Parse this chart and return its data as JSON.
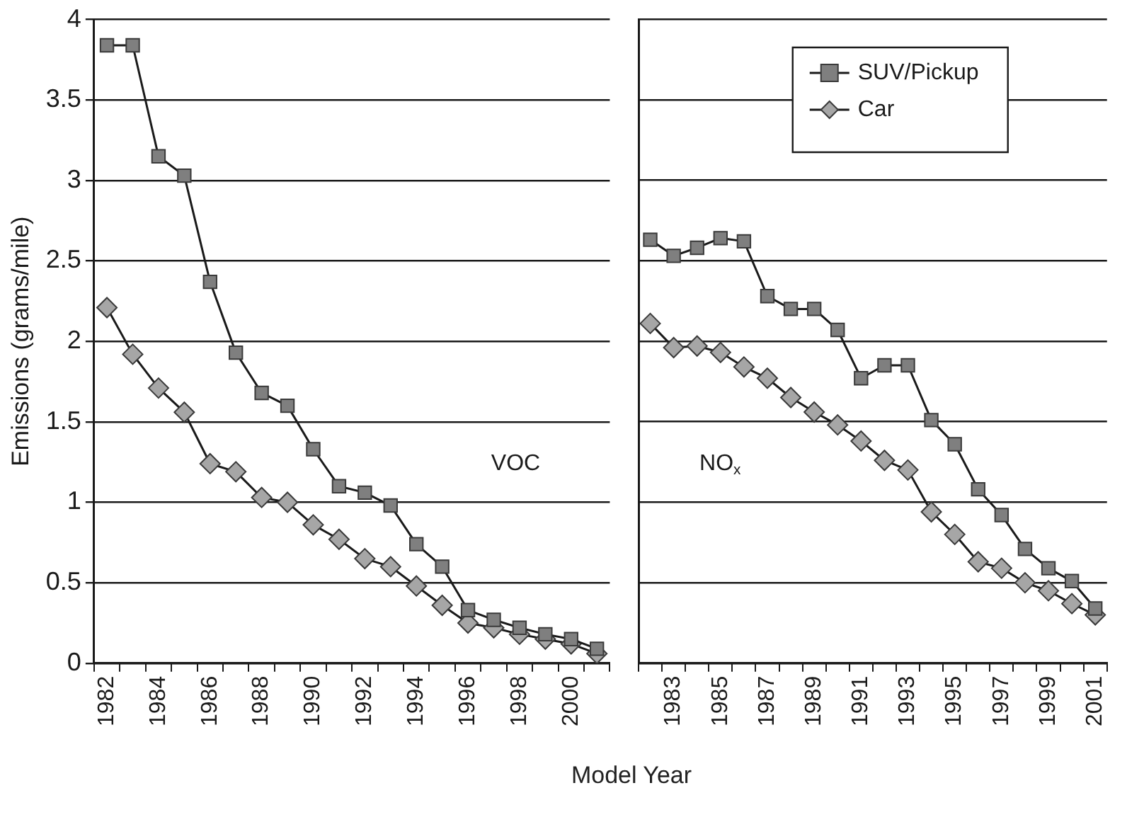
{
  "chart_data": [
    {
      "type": "line",
      "ylabel": "Emissions (grams/mile)",
      "xlabel": "Model Year",
      "categories": [
        "1982",
        null,
        "1984",
        null,
        "1986",
        null,
        "1988",
        null,
        "1990",
        null,
        "1992",
        null,
        "1994",
        null,
        "1996",
        null,
        "1998",
        null,
        "2000",
        null
      ],
      "series": [
        {
          "color": "#7f7f7f",
          "marker": "square",
          "values": [
            3.84,
            3.84,
            3.15,
            3.03,
            2.37,
            1.93,
            1.68,
            1.6,
            1.33,
            1.1,
            1.06,
            0.98,
            0.74,
            0.6,
            0.33,
            0.27,
            0.22,
            0.18,
            0.15,
            0.09
          ]
        },
        {
          "color": "#a6a6a6",
          "marker": "diamond",
          "values": [
            2.21,
            1.92,
            1.71,
            1.56,
            1.24,
            1.19,
            1.03,
            1.0,
            0.86,
            0.77,
            0.65,
            0.6,
            0.48,
            0.36,
            0.25,
            0.22,
            0.18,
            0.15,
            0.12,
            0.06
          ]
        }
      ],
      "ylim": [
        0,
        4
      ],
      "yticks": [
        0,
        0.5,
        1,
        1.5,
        2,
        2.5,
        3,
        3.5,
        4
      ],
      "grid": "y",
      "line_style": "solid",
      "annotations": [
        "VOC"
      ]
    },
    {
      "type": "line",
      "categories": [
        null,
        "1983",
        null,
        "1985",
        null,
        "1987",
        null,
        "1989",
        null,
        "1991",
        null,
        "1993",
        null,
        "1995",
        null,
        "1997",
        null,
        "1999",
        null,
        "2001"
      ],
      "series": [
        {
          "name": "SUV/Pickup",
          "color": "#7f7f7f",
          "marker": "square",
          "values": [
            2.63,
            2.53,
            2.58,
            2.64,
            2.62,
            2.28,
            2.2,
            2.2,
            2.07,
            1.77,
            1.85,
            1.85,
            1.51,
            1.36,
            1.08,
            0.92,
            0.71,
            0.59,
            0.51,
            0.34
          ]
        },
        {
          "name": "Car",
          "color": "#a6a6a6",
          "marker": "diamond",
          "values": [
            2.11,
            1.96,
            1.97,
            1.93,
            1.84,
            1.77,
            1.65,
            1.56,
            1.48,
            1.38,
            1.26,
            1.2,
            0.94,
            0.8,
            0.63,
            0.59,
            0.5,
            0.45,
            0.37,
            0.3
          ]
        }
      ],
      "ylim": [
        0,
        4
      ],
      "yticks": [
        0,
        0.5,
        1,
        1.5,
        2,
        2.5,
        3,
        3.5,
        4
      ],
      "grid": "y",
      "line_style": "solid",
      "tick_labels": "x",
      "legend": "top right",
      "annotations": [
        "NO$_{x}$"
      ]
    }
  ]
}
